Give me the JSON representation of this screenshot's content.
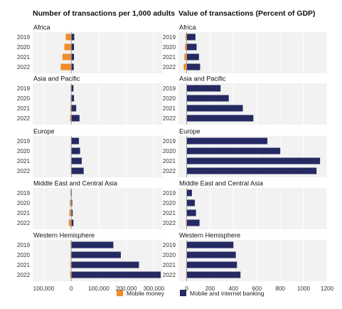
{
  "chart_data": [
    {
      "type": "bar",
      "orientation": "horizontal",
      "title": "Number of transactions per 1,000 adults",
      "xlim": [
        -140000,
        330000
      ],
      "xticks": [
        -100000,
        0,
        100000,
        200000,
        300000
      ],
      "xtick_labels": [
        "100,000",
        "0",
        "100,000",
        "200,000",
        "300,000"
      ],
      "grid": true,
      "categories": [
        "2019",
        "2020",
        "2021",
        "2022"
      ],
      "panels": [
        {
          "name": "Africa",
          "series": [
            {
              "name": "Mobile money",
              "values": [
                -20000,
                -25000,
                -32000,
                -38000
              ]
            },
            {
              "name": "Mobile and internet banking",
              "values": [
                11000,
                10000,
                10000,
                9000
              ]
            }
          ]
        },
        {
          "name": "Asia and Pacific",
          "series": [
            {
              "name": "Mobile money",
              "values": [
                -2000,
                -2500,
                -3000,
                -4000
              ]
            },
            {
              "name": "Mobile and internet banking",
              "values": [
                8000,
                10000,
                18000,
                30000
              ]
            }
          ]
        },
        {
          "name": "Europe",
          "series": [
            {
              "name": "Mobile money",
              "values": [
                -500,
                -500,
                -700,
                -800
              ]
            },
            {
              "name": "Mobile and internet banking",
              "values": [
                28000,
                32000,
                38000,
                45000
              ]
            }
          ]
        },
        {
          "name": "Middle East and Central Asia",
          "series": [
            {
              "name": "Mobile money",
              "values": [
                -3000,
                -5000,
                -7000,
                -9000
              ]
            },
            {
              "name": "Mobile and internet banking",
              "values": [
                2000,
                3500,
                5000,
                8000
              ]
            }
          ]
        },
        {
          "name": "Western Hemisphere",
          "series": [
            {
              "name": "Mobile money",
              "values": [
                -2500,
                -3000,
                -3500,
                -4000
              ]
            },
            {
              "name": "Mobile and internet banking",
              "values": [
                153000,
                180000,
                246000,
                325000
              ]
            }
          ]
        }
      ]
    },
    {
      "type": "bar",
      "orientation": "horizontal",
      "title": "Value of transactions (Percent of GDP)",
      "xlim": [
        -70,
        1200
      ],
      "xticks": [
        0,
        200,
        400,
        600,
        800,
        1000,
        1200
      ],
      "xtick_labels": [
        "0",
        "200",
        "400",
        "600",
        "800",
        "1000",
        "1200"
      ],
      "grid": true,
      "categories": [
        "2019",
        "2020",
        "2021",
        "2022"
      ],
      "panels": [
        {
          "name": "Africa",
          "series": [
            {
              "name": "Mobile money",
              "values": [
                -10,
                -14,
                -20,
                -25
              ]
            },
            {
              "name": "Mobile and internet banking",
              "values": [
                75,
                85,
                105,
                115
              ]
            }
          ]
        },
        {
          "name": "Asia and Pacific",
          "series": [
            {
              "name": "Mobile money",
              "values": [
                -3,
                -3,
                -4,
                -5
              ]
            },
            {
              "name": "Mobile and internet banking",
              "values": [
                290,
                360,
                480,
                570
              ]
            }
          ]
        },
        {
          "name": "Europe",
          "series": [
            {
              "name": "Mobile money",
              "values": [
                -1,
                -1,
                -1,
                -1
              ]
            },
            {
              "name": "Mobile and internet banking",
              "values": [
                690,
                800,
                1140,
                1110
              ]
            }
          ]
        },
        {
          "name": "Middle East and Central Asia",
          "series": [
            {
              "name": "Mobile money",
              "values": [
                -2,
                -3,
                -4,
                -6
              ]
            },
            {
              "name": "Mobile and internet banking",
              "values": [
                45,
                70,
                80,
                110
              ]
            }
          ]
        },
        {
          "name": "Western Hemisphere",
          "series": [
            {
              "name": "Mobile money",
              "values": [
                -3,
                -4,
                -4,
                -5
              ]
            },
            {
              "name": "Mobile and internet banking",
              "values": [
                400,
                420,
                430,
                460
              ]
            }
          ]
        }
      ]
    }
  ],
  "legend": {
    "position": "bottom",
    "items": [
      {
        "label": "Mobile money",
        "color": "#f28c28"
      },
      {
        "label": "Mobile and internet banking",
        "color": "#262a63"
      }
    ]
  },
  "colors": {
    "mobile_money": "#f28c28",
    "banking": "#262a63",
    "panel_bg": "#f2f2f2",
    "grid": "#ffffff"
  }
}
